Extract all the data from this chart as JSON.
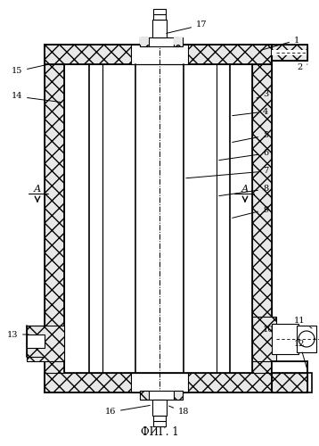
{
  "title": "ФИГ. 1",
  "background_color": "#ffffff",
  "line_color": "#000000",
  "fig_width": 3.58,
  "fig_height": 5.0,
  "dpi": 100
}
